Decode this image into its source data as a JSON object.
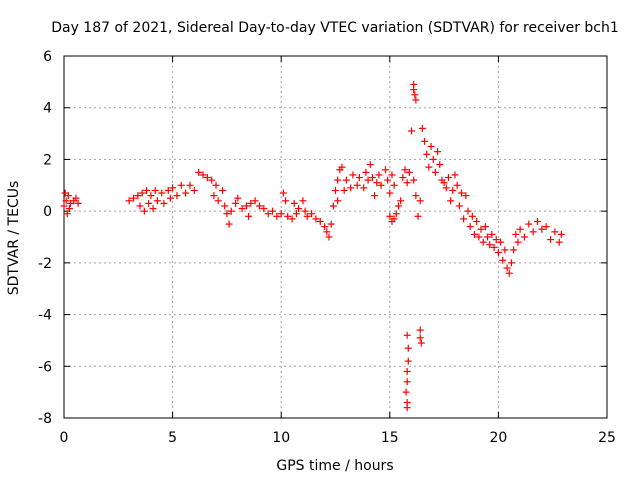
{
  "chart_data": {
    "type": "scatter",
    "title": "Day 187 of 2021, Sidereal Day-to-day VTEC variation (SDTVAR) for receiver bch1",
    "xlabel": "GPS time / hours",
    "ylabel": "SDTVAR / TECUs",
    "xlim": [
      0,
      25
    ],
    "ylim": [
      -8,
      6
    ],
    "xticks": [
      0,
      5,
      10,
      15,
      20,
      25
    ],
    "yticks": [
      -8,
      -6,
      -4,
      -2,
      0,
      2,
      4,
      6
    ],
    "xtick_labels": [
      "0",
      "5",
      "10",
      "15",
      "20",
      "25"
    ],
    "ytick_labels": [
      "-8",
      "-6",
      "-4",
      "-2",
      "0",
      "2",
      "4",
      "6"
    ],
    "grid": true,
    "marker": "plus",
    "color": "#ff0000",
    "series": [
      {
        "name": "SDTVAR bch1",
        "points": [
          [
            0.0,
            0.2
          ],
          [
            0.05,
            0.7
          ],
          [
            0.1,
            0.4
          ],
          [
            0.15,
            -0.1
          ],
          [
            0.2,
            0.6
          ],
          [
            0.25,
            0.1
          ],
          [
            0.3,
            0.3
          ],
          [
            0.45,
            0.4
          ],
          [
            0.55,
            0.5
          ],
          [
            0.65,
            0.3
          ],
          [
            3.0,
            0.4
          ],
          [
            3.2,
            0.5
          ],
          [
            3.4,
            0.6
          ],
          [
            3.5,
            0.2
          ],
          [
            3.6,
            0.7
          ],
          [
            3.7,
            0.0
          ],
          [
            3.8,
            0.8
          ],
          [
            3.9,
            0.3
          ],
          [
            4.0,
            0.6
          ],
          [
            4.1,
            0.1
          ],
          [
            4.2,
            0.8
          ],
          [
            4.3,
            0.4
          ],
          [
            4.5,
            0.7
          ],
          [
            4.6,
            0.3
          ],
          [
            4.8,
            0.8
          ],
          [
            4.9,
            0.5
          ],
          [
            5.0,
            0.9
          ],
          [
            5.2,
            0.6
          ],
          [
            5.4,
            1.0
          ],
          [
            5.6,
            0.7
          ],
          [
            5.8,
            1.0
          ],
          [
            6.0,
            0.8
          ],
          [
            6.2,
            1.5
          ],
          [
            6.4,
            1.4
          ],
          [
            6.6,
            1.3
          ],
          [
            6.8,
            1.2
          ],
          [
            7.0,
            1.0
          ],
          [
            6.9,
            0.6
          ],
          [
            7.1,
            0.4
          ],
          [
            7.3,
            0.8
          ],
          [
            7.4,
            0.2
          ],
          [
            7.5,
            -0.1
          ],
          [
            7.6,
            -0.5
          ],
          [
            7.7,
            0.0
          ],
          [
            7.9,
            0.3
          ],
          [
            8.0,
            0.5
          ],
          [
            8.2,
            0.1
          ],
          [
            8.4,
            0.2
          ],
          [
            8.5,
            -0.2
          ],
          [
            8.6,
            0.3
          ],
          [
            8.8,
            0.4
          ],
          [
            9.0,
            0.2
          ],
          [
            9.2,
            0.1
          ],
          [
            9.4,
            -0.1
          ],
          [
            9.6,
            0.0
          ],
          [
            9.8,
            -0.2
          ],
          [
            10.0,
            -0.1
          ],
          [
            10.1,
            0.7
          ],
          [
            10.2,
            0.4
          ],
          [
            10.3,
            -0.2
          ],
          [
            10.5,
            -0.3
          ],
          [
            10.6,
            0.3
          ],
          [
            10.7,
            -0.1
          ],
          [
            10.8,
            0.1
          ],
          [
            11.0,
            0.4
          ],
          [
            11.1,
            0.0
          ],
          [
            11.2,
            -0.2
          ],
          [
            11.4,
            -0.1
          ],
          [
            11.6,
            -0.3
          ],
          [
            11.8,
            -0.4
          ],
          [
            12.0,
            -0.6
          ],
          [
            12.1,
            -0.8
          ],
          [
            12.2,
            -1.0
          ],
          [
            12.3,
            -0.5
          ],
          [
            12.4,
            0.2
          ],
          [
            12.5,
            0.8
          ],
          [
            12.6,
            1.2
          ],
          [
            12.7,
            1.6
          ],
          [
            12.8,
            1.7
          ],
          [
            12.6,
            0.4
          ],
          [
            12.9,
            0.8
          ],
          [
            13.0,
            1.2
          ],
          [
            13.2,
            0.9
          ],
          [
            13.3,
            1.4
          ],
          [
            13.5,
            1.0
          ],
          [
            13.6,
            1.3
          ],
          [
            13.8,
            0.9
          ],
          [
            13.9,
            1.5
          ],
          [
            14.0,
            1.2
          ],
          [
            14.1,
            1.8
          ],
          [
            14.2,
            1.3
          ],
          [
            14.3,
            0.6
          ],
          [
            14.4,
            1.1
          ],
          [
            14.5,
            1.4
          ],
          [
            14.6,
            1.0
          ],
          [
            14.8,
            1.6
          ],
          [
            14.9,
            1.2
          ],
          [
            15.0,
            0.7
          ],
          [
            15.1,
            1.4
          ],
          [
            15.2,
            1.0
          ],
          [
            15.0,
            -0.2
          ],
          [
            15.1,
            -0.4
          ],
          [
            15.2,
            -0.3
          ],
          [
            15.3,
            -0.1
          ],
          [
            15.4,
            0.2
          ],
          [
            15.5,
            0.4
          ],
          [
            15.6,
            1.3
          ],
          [
            15.7,
            1.6
          ],
          [
            15.8,
            1.1
          ],
          [
            15.9,
            1.5
          ],
          [
            16.0,
            3.1
          ],
          [
            16.1,
            1.2
          ],
          [
            16.2,
            0.6
          ],
          [
            16.3,
            -0.2
          ],
          [
            16.4,
            0.4
          ],
          [
            16.1,
            4.9
          ],
          [
            16.1,
            4.7
          ],
          [
            16.15,
            4.5
          ],
          [
            16.2,
            4.3
          ],
          [
            15.8,
            -4.8
          ],
          [
            15.85,
            -5.3
          ],
          [
            15.85,
            -5.8
          ],
          [
            15.8,
            -6.2
          ],
          [
            15.8,
            -6.6
          ],
          [
            15.75,
            -7.0
          ],
          [
            15.8,
            -7.4
          ],
          [
            15.8,
            -7.6
          ],
          [
            16.4,
            -4.6
          ],
          [
            16.4,
            -4.9
          ],
          [
            16.45,
            -5.1
          ],
          [
            16.5,
            3.2
          ],
          [
            16.6,
            2.7
          ],
          [
            16.7,
            2.2
          ],
          [
            16.8,
            1.7
          ],
          [
            16.9,
            2.5
          ],
          [
            17.0,
            2.0
          ],
          [
            17.1,
            1.5
          ],
          [
            17.2,
            2.3
          ],
          [
            17.3,
            1.8
          ],
          [
            17.4,
            1.2
          ],
          [
            17.5,
            1.1
          ],
          [
            17.6,
            0.9
          ],
          [
            17.7,
            1.3
          ],
          [
            17.8,
            0.4
          ],
          [
            17.9,
            0.8
          ],
          [
            18.0,
            1.4
          ],
          [
            18.1,
            1.0
          ],
          [
            18.2,
            0.2
          ],
          [
            18.3,
            0.7
          ],
          [
            18.4,
            -0.3
          ],
          [
            18.5,
            0.6
          ],
          [
            18.6,
            0.0
          ],
          [
            18.7,
            -0.6
          ],
          [
            18.8,
            -0.2
          ],
          [
            18.9,
            -0.9
          ],
          [
            19.0,
            -0.4
          ],
          [
            19.1,
            -1.0
          ],
          [
            19.2,
            -0.7
          ],
          [
            19.3,
            -1.2
          ],
          [
            19.4,
            -0.6
          ],
          [
            19.5,
            -1.0
          ],
          [
            19.6,
            -1.3
          ],
          [
            19.7,
            -0.9
          ],
          [
            19.8,
            -1.4
          ],
          [
            19.9,
            -1.1
          ],
          [
            20.0,
            -1.6
          ],
          [
            20.1,
            -1.2
          ],
          [
            20.2,
            -1.9
          ],
          [
            20.3,
            -1.5
          ],
          [
            20.4,
            -2.2
          ],
          [
            20.5,
            -2.4
          ],
          [
            20.6,
            -2.0
          ],
          [
            20.7,
            -1.5
          ],
          [
            20.8,
            -0.9
          ],
          [
            20.9,
            -1.2
          ],
          [
            21.0,
            -0.7
          ],
          [
            21.2,
            -1.0
          ],
          [
            21.4,
            -0.5
          ],
          [
            21.6,
            -0.8
          ],
          [
            21.8,
            -0.4
          ],
          [
            22.0,
            -0.7
          ],
          [
            22.2,
            -0.6
          ],
          [
            22.4,
            -1.1
          ],
          [
            22.6,
            -0.8
          ],
          [
            22.8,
            -1.2
          ],
          [
            22.9,
            -0.9
          ]
        ]
      }
    ]
  }
}
